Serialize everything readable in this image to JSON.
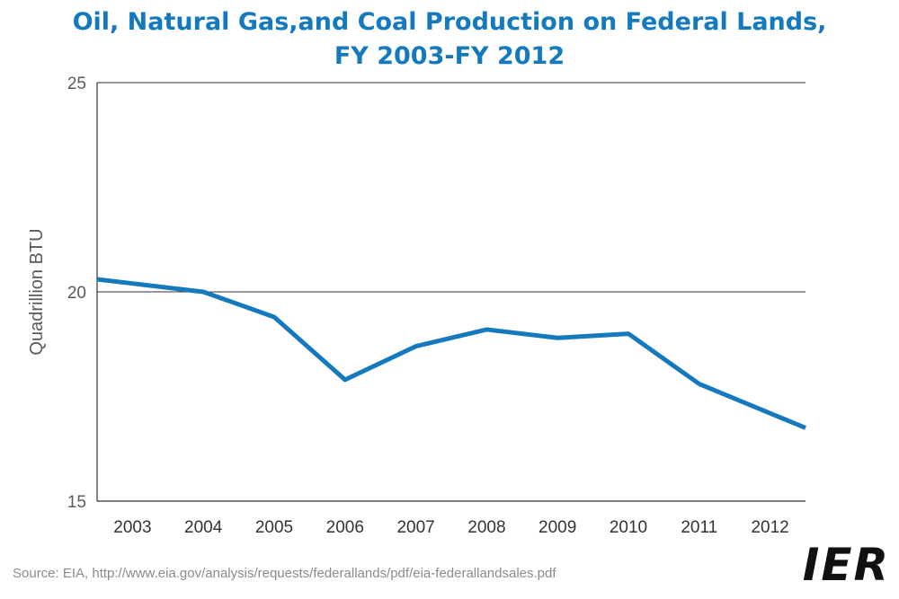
{
  "title_line1": "Oil, Natural Gas,and Coal Production on Federal Lands,",
  "title_line2": "FY 2003-FY 2012",
  "source": "Source: EIA, http://www.eia.gov/analysis/requests/federallands/pdf/eia-federallandsales.pdf",
  "logo_text": "IER",
  "colors": {
    "title": "#1479bd",
    "line": "#1479bd",
    "axis": "#333333",
    "logo": "#111111"
  },
  "chart_data": {
    "type": "line",
    "title": "Oil, Natural Gas,and Coal Production on Federal Lands, FY 2003-FY 2012",
    "xlabel": "",
    "ylabel": "Quadrillion BTU",
    "categories": [
      "2003",
      "2004",
      "2005",
      "2006",
      "2007",
      "2008",
      "2009",
      "2010",
      "2011",
      "2012"
    ],
    "series": [
      {
        "values": [
          20.2,
          20.0,
          19.4,
          17.9,
          18.7,
          19.1,
          18.9,
          19.0,
          17.8,
          17.1
        ]
      }
    ],
    "ylim": [
      15,
      25
    ],
    "yticks": [
      15,
      20,
      25
    ],
    "grid": "horizontal at 20 and 25",
    "legend": "none"
  }
}
